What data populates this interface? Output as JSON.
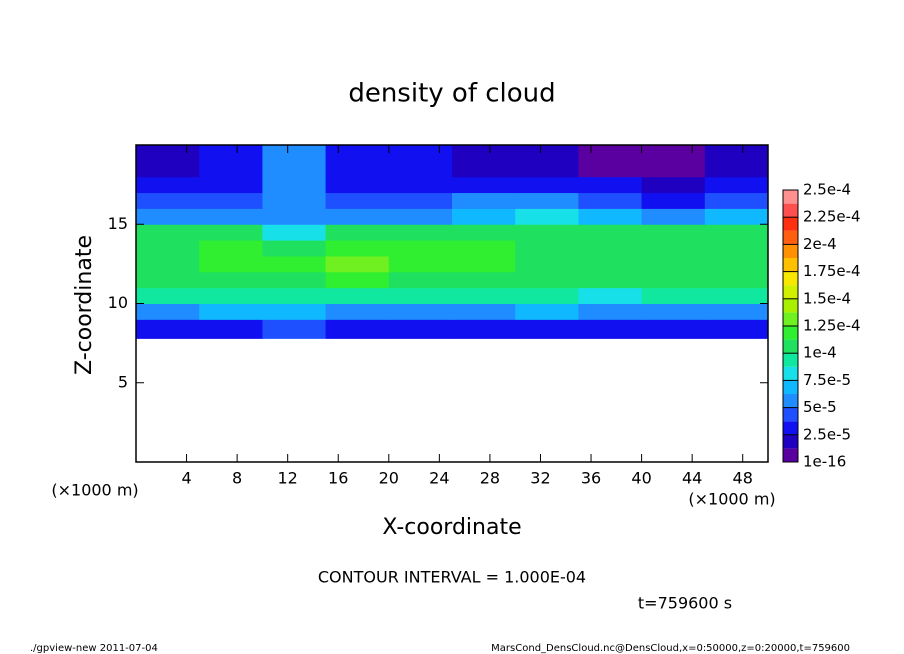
{
  "chart_data": {
    "type": "heatmap",
    "title": "density of cloud",
    "xlabel": "X-coordinate",
    "ylabel": "Z-coordinate",
    "x_unit": "(×1000 m)",
    "contour_note": "CONTOUR INTERVAL = 1.000E-04",
    "time_note": "t=759600 s",
    "footer_left": "./gpview-new  2011-07-04",
    "footer_right": "MarsCond_DensCloud.nc@DensCloud,x=0:50000,z=0:20000,t=759600",
    "xlim": [
      0,
      50
    ],
    "ylim": [
      0,
      20
    ],
    "xticks": [
      4,
      8,
      12,
      16,
      20,
      24,
      28,
      32,
      36,
      40,
      44,
      48
    ],
    "yticks": [
      5,
      10,
      15
    ],
    "x_bins": [
      0,
      5,
      10,
      15,
      20,
      25,
      30,
      35,
      40,
      45,
      50
    ],
    "z_bins": [
      7.8,
      9,
      10,
      11,
      12,
      13,
      14,
      15,
      16,
      17,
      18,
      20
    ],
    "values": [
      [
        3e-05,
        3e-05,
        4e-05,
        3e-05,
        3e-05,
        3e-05,
        3e-05,
        3e-05,
        3e-05,
        3e-05
      ],
      [
        6e-05,
        6.5e-05,
        7e-05,
        6e-05,
        6e-05,
        6e-05,
        6.5e-05,
        6e-05,
        6e-05,
        6e-05
      ],
      [
        9e-05,
        9e-05,
        9.5e-05,
        9.5e-05,
        9e-05,
        9.5e-05,
        9e-05,
        8.5e-05,
        9e-05,
        9e-05
      ],
      [
        0.000105,
        0.00011,
        0.00011,
        0.000115,
        0.00011,
        0.00011,
        0.000105,
        0.000105,
        0.000105,
        0.000105
      ],
      [
        0.00011,
        0.00012,
        0.00012,
        0.000125,
        0.00012,
        0.000115,
        0.00011,
        0.00011,
        0.00011,
        0.00011
      ],
      [
        0.00011,
        0.000115,
        0.00011,
        0.00012,
        0.000115,
        0.000115,
        0.00011,
        0.000105,
        0.000105,
        0.000105
      ],
      [
        0.0001,
        0.0001,
        8e-05,
        0.0001,
        0.0001,
        0.000105,
        0.000105,
        0.0001,
        0.0001,
        0.0001
      ],
      [
        6e-05,
        5.5e-05,
        6e-05,
        6e-05,
        6e-05,
        7e-05,
        8e-05,
        7e-05,
        6e-05,
        7e-05
      ],
      [
        4e-05,
        4e-05,
        6e-05,
        4e-05,
        4e-05,
        5e-05,
        5e-05,
        4.5e-05,
        3.5e-05,
        4e-05
      ],
      [
        3e-05,
        3e-05,
        6e-05,
        3e-05,
        3e-05,
        3e-05,
        3e-05,
        2.5e-05,
        1.5e-05,
        2.5e-05
      ],
      [
        2e-05,
        2.5e-05,
        5e-05,
        2.5e-05,
        2.5e-05,
        2e-05,
        2e-05,
        1e-05,
        5e-06,
        2e-05
      ]
    ],
    "levels": [
      1e-16,
      1.25e-05,
      2.5e-05,
      3.75e-05,
      5e-05,
      6.25e-05,
      7.5e-05,
      8.75e-05,
      0.0001,
      0.0001125,
      0.000125,
      0.0001375,
      0.00015,
      0.0001625,
      0.000175,
      0.0001875,
      0.0002,
      0.0002125,
      0.000225,
      0.0002375,
      0.00025
    ],
    "colors": [
      "#5a00a0",
      "#2000c0",
      "#1010f0",
      "#1e50ff",
      "#1f8cff",
      "#10b8ff",
      "#18e0e8",
      "#10e8a0",
      "#20e060",
      "#30ee30",
      "#70f020",
      "#a8f000",
      "#d0f000",
      "#f8e800",
      "#ffc000",
      "#ff9000",
      "#ff6010",
      "#ff3010",
      "#ff5050",
      "#ff9090"
    ],
    "colorbar_ticks": [
      {
        "value": 1e-16,
        "label": "1e-16"
      },
      {
        "value": 2.5e-05,
        "label": "2.5e-5"
      },
      {
        "value": 5e-05,
        "label": "5e-5"
      },
      {
        "value": 7.5e-05,
        "label": "7.5e-5"
      },
      {
        "value": 0.0001,
        "label": "1e-4"
      },
      {
        "value": 0.000125,
        "label": "1.25e-4"
      },
      {
        "value": 0.00015,
        "label": "1.5e-4"
      },
      {
        "value": 0.000175,
        "label": "1.75e-4"
      },
      {
        "value": 0.0002,
        "label": "2e-4"
      },
      {
        "value": 0.000225,
        "label": "2.25e-4"
      },
      {
        "value": 0.00025,
        "label": "2.5e-4"
      }
    ]
  }
}
